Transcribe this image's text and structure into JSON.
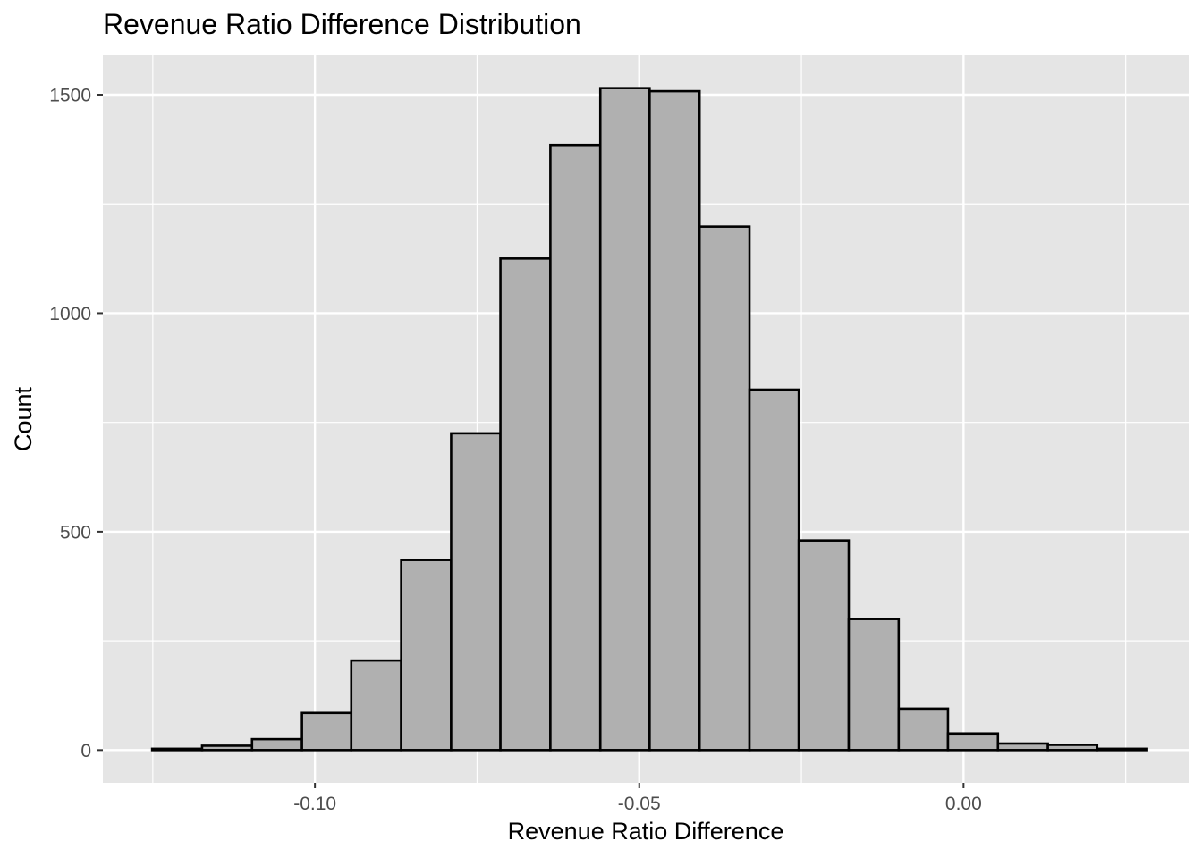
{
  "chart_data": {
    "type": "bar",
    "subtype": "histogram",
    "title": "Revenue Ratio Difference Distribution",
    "xlabel": "Revenue Ratio Difference",
    "ylabel": "Count",
    "xlim": [
      -0.1327,
      0.0347
    ],
    "ylim": [
      -75,
      1590
    ],
    "xticks": [
      -0.1,
      -0.05,
      0.0
    ],
    "xtick_labels": [
      "-0.10",
      "-0.05",
      "0.00"
    ],
    "yticks": [
      0,
      500,
      1000,
      1500
    ],
    "ytick_labels": [
      "0",
      "500",
      "1000",
      "1500"
    ],
    "grid": true,
    "bin_width": 0.00767,
    "bins": [
      {
        "x0": -0.1251,
        "x1": -0.1174,
        "count": 3
      },
      {
        "x0": -0.1174,
        "x1": -0.1097,
        "count": 10
      },
      {
        "x0": -0.1097,
        "x1": -0.102,
        "count": 25
      },
      {
        "x0": -0.102,
        "x1": -0.0944,
        "count": 85
      },
      {
        "x0": -0.0944,
        "x1": -0.0867,
        "count": 205
      },
      {
        "x0": -0.0867,
        "x1": -0.079,
        "count": 435
      },
      {
        "x0": -0.079,
        "x1": -0.0714,
        "count": 725
      },
      {
        "x0": -0.0714,
        "x1": -0.0637,
        "count": 1125
      },
      {
        "x0": -0.0637,
        "x1": -0.056,
        "count": 1385
      },
      {
        "x0": -0.056,
        "x1": -0.0484,
        "count": 1515
      },
      {
        "x0": -0.0484,
        "x1": -0.0407,
        "count": 1508
      },
      {
        "x0": -0.0407,
        "x1": -0.033,
        "count": 1198
      },
      {
        "x0": -0.033,
        "x1": -0.0254,
        "count": 825
      },
      {
        "x0": -0.0254,
        "x1": -0.0177,
        "count": 480
      },
      {
        "x0": -0.0177,
        "x1": -0.01,
        "count": 300
      },
      {
        "x0": -0.01,
        "x1": -0.0024,
        "count": 95
      },
      {
        "x0": -0.0024,
        "x1": 0.0053,
        "count": 38
      },
      {
        "x0": 0.0053,
        "x1": 0.013,
        "count": 15
      },
      {
        "x0": 0.013,
        "x1": 0.0206,
        "count": 12
      },
      {
        "x0": 0.0206,
        "x1": 0.0283,
        "count": 3
      }
    ],
    "colors": {
      "panel_background": "#e5e5e5",
      "grid_major": "#ffffff",
      "bar_fill": "#b0b0b0",
      "bar_outline": "#000000",
      "tick_label": "#4d4d4d"
    }
  }
}
